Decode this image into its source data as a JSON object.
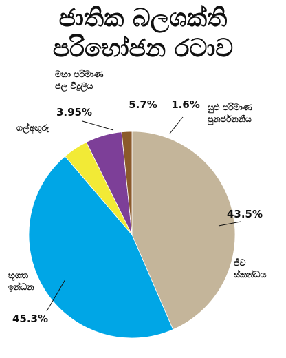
{
  "title_lines": [
    "ජාතික බලශක්ති",
    "පරිභෝජන රටාව"
  ],
  "chart_data": {
    "type": "pie",
    "title": "ජාතික බලශක්ති පරිභෝජන රටාව",
    "slices": [
      {
        "label": [
          "ජීව",
          "ස්කන්ධය"
        ],
        "value": 43.5,
        "display": "43.5%",
        "color": "#c4b59a"
      },
      {
        "label": [
          "භූගත",
          "ඉන්ධන"
        ],
        "value": 45.3,
        "display": "45.3%",
        "color": "#00a6e6"
      },
      {
        "label": [
          "ගල්අඟුරු"
        ],
        "value": 3.95,
        "display": "3.95%",
        "color": "#f2ea36"
      },
      {
        "label": [
          "මහා පරිමාණ",
          "ජල විදුලිය"
        ],
        "value": 5.7,
        "display": "5.7%",
        "color": "#7d3f98"
      },
      {
        "label": [
          "සුළු පරිමාණ",
          "පුනර්ජනනීය"
        ],
        "value": 1.6,
        "display": "1.6%",
        "color": "#8b5a2b"
      }
    ],
    "legend": "none"
  }
}
